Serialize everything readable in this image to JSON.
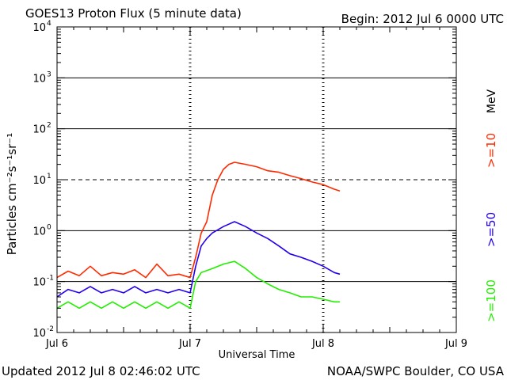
{
  "header": {
    "title": "GOES13 Proton Flux (5 minute data)",
    "begin": "Begin: 2012 Jul 6 0000 UTC"
  },
  "footer": {
    "updated": "Updated 2012 Jul  8 02:46:02 UTC",
    "source": "NOAA/SWPC Boulder, CO USA"
  },
  "colors": {
    "ge10": "#ff2a00",
    "ge50": "#2200ee",
    "ge100": "#22ee00",
    "unit": "#000000"
  },
  "chart_data": {
    "type": "line",
    "xlabel": "Universal Time",
    "ylabel": "Particles cm⁻²s⁻¹sr⁻¹",
    "y_scale": "log",
    "ylim": [
      0.01,
      10000
    ],
    "xlim": [
      "2012-07-06 00:00",
      "2012-07-09 00:00"
    ],
    "x_tick_labels": [
      "Jul 6",
      "Jul 7",
      "Jul 8",
      "Jul 9"
    ],
    "y_tick_labels": [
      {
        "base": "10",
        "exp": "-2"
      },
      {
        "base": "10",
        "exp": "-1"
      },
      {
        "base": "10",
        "exp": "0"
      },
      {
        "base": "10",
        "exp": "1"
      },
      {
        "base": "10",
        "exp": "2"
      },
      {
        "base": "10",
        "exp": "3"
      },
      {
        "base": "10",
        "exp": "4"
      }
    ],
    "threshold_line": 10,
    "unit_label": "MeV",
    "grid": true,
    "legend_position": "right",
    "series": [
      {
        "name": ">=10",
        "color": "#ff2a00",
        "points": [
          [
            "2012-07-06 00:00",
            0.12
          ],
          [
            "2012-07-06 02:00",
            0.16
          ],
          [
            "2012-07-06 04:00",
            0.13
          ],
          [
            "2012-07-06 06:00",
            0.2
          ],
          [
            "2012-07-06 08:00",
            0.13
          ],
          [
            "2012-07-06 10:00",
            0.15
          ],
          [
            "2012-07-06 12:00",
            0.14
          ],
          [
            "2012-07-06 14:00",
            0.17
          ],
          [
            "2012-07-06 16:00",
            0.12
          ],
          [
            "2012-07-06 18:00",
            0.22
          ],
          [
            "2012-07-06 20:00",
            0.13
          ],
          [
            "2012-07-06 22:00",
            0.14
          ],
          [
            "2012-07-07 00:00",
            0.12
          ],
          [
            "2012-07-07 01:00",
            0.3
          ],
          [
            "2012-07-07 02:00",
            0.9
          ],
          [
            "2012-07-07 03:00",
            1.5
          ],
          [
            "2012-07-07 04:00",
            5
          ],
          [
            "2012-07-07 05:00",
            10
          ],
          [
            "2012-07-07 06:00",
            16
          ],
          [
            "2012-07-07 07:00",
            20
          ],
          [
            "2012-07-07 08:00",
            22
          ],
          [
            "2012-07-07 10:00",
            20
          ],
          [
            "2012-07-07 12:00",
            18
          ],
          [
            "2012-07-07 14:00",
            15
          ],
          [
            "2012-07-07 16:00",
            14
          ],
          [
            "2012-07-07 18:00",
            12
          ],
          [
            "2012-07-07 20:00",
            10.5
          ],
          [
            "2012-07-07 22:00",
            9
          ],
          [
            "2012-07-08 00:00",
            8
          ],
          [
            "2012-07-08 02:00",
            6.5
          ],
          [
            "2012-07-08 03:00",
            6
          ]
        ]
      },
      {
        "name": ">=50",
        "color": "#2200ee",
        "points": [
          [
            "2012-07-06 00:00",
            0.05
          ],
          [
            "2012-07-06 02:00",
            0.07
          ],
          [
            "2012-07-06 04:00",
            0.06
          ],
          [
            "2012-07-06 06:00",
            0.08
          ],
          [
            "2012-07-06 08:00",
            0.06
          ],
          [
            "2012-07-06 10:00",
            0.07
          ],
          [
            "2012-07-06 12:00",
            0.06
          ],
          [
            "2012-07-06 14:00",
            0.08
          ],
          [
            "2012-07-06 16:00",
            0.06
          ],
          [
            "2012-07-06 18:00",
            0.07
          ],
          [
            "2012-07-06 20:00",
            0.06
          ],
          [
            "2012-07-06 22:00",
            0.07
          ],
          [
            "2012-07-07 00:00",
            0.06
          ],
          [
            "2012-07-07 01:00",
            0.2
          ],
          [
            "2012-07-07 02:00",
            0.5
          ],
          [
            "2012-07-07 03:00",
            0.7
          ],
          [
            "2012-07-07 04:00",
            0.9
          ],
          [
            "2012-07-07 06:00",
            1.2
          ],
          [
            "2012-07-07 08:00",
            1.5
          ],
          [
            "2012-07-07 10:00",
            1.2
          ],
          [
            "2012-07-07 12:00",
            0.9
          ],
          [
            "2012-07-07 14:00",
            0.7
          ],
          [
            "2012-07-07 16:00",
            0.5
          ],
          [
            "2012-07-07 18:00",
            0.35
          ],
          [
            "2012-07-07 20:00",
            0.3
          ],
          [
            "2012-07-07 22:00",
            0.25
          ],
          [
            "2012-07-08 00:00",
            0.2
          ],
          [
            "2012-07-08 02:00",
            0.15
          ],
          [
            "2012-07-08 03:00",
            0.14
          ]
        ]
      },
      {
        "name": ">=100",
        "color": "#22ee00",
        "points": [
          [
            "2012-07-06 00:00",
            0.03
          ],
          [
            "2012-07-06 02:00",
            0.04
          ],
          [
            "2012-07-06 04:00",
            0.03
          ],
          [
            "2012-07-06 06:00",
            0.04
          ],
          [
            "2012-07-06 08:00",
            0.03
          ],
          [
            "2012-07-06 10:00",
            0.04
          ],
          [
            "2012-07-06 12:00",
            0.03
          ],
          [
            "2012-07-06 14:00",
            0.04
          ],
          [
            "2012-07-06 16:00",
            0.03
          ],
          [
            "2012-07-06 18:00",
            0.04
          ],
          [
            "2012-07-06 20:00",
            0.03
          ],
          [
            "2012-07-06 22:00",
            0.04
          ],
          [
            "2012-07-07 00:00",
            0.03
          ],
          [
            "2012-07-07 01:00",
            0.1
          ],
          [
            "2012-07-07 02:00",
            0.15
          ],
          [
            "2012-07-07 04:00",
            0.18
          ],
          [
            "2012-07-07 06:00",
            0.22
          ],
          [
            "2012-07-07 08:00",
            0.25
          ],
          [
            "2012-07-07 10:00",
            0.18
          ],
          [
            "2012-07-07 12:00",
            0.12
          ],
          [
            "2012-07-07 14:00",
            0.09
          ],
          [
            "2012-07-07 16:00",
            0.07
          ],
          [
            "2012-07-07 18:00",
            0.06
          ],
          [
            "2012-07-07 20:00",
            0.05
          ],
          [
            "2012-07-07 22:00",
            0.05
          ],
          [
            "2012-07-08 00:00",
            0.045
          ],
          [
            "2012-07-08 02:00",
            0.04
          ],
          [
            "2012-07-08 03:00",
            0.04
          ]
        ]
      }
    ]
  }
}
